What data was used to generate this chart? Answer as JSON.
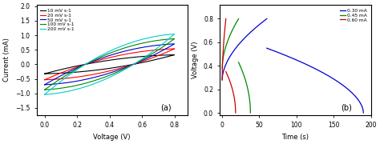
{
  "panel_a": {
    "title": "(a)",
    "xlabel": "Voltage (V)",
    "ylabel": "Current (mA)",
    "xlim": [
      -0.05,
      0.88
    ],
    "ylim": [
      -1.75,
      2.05
    ],
    "yticks": [
      -1.5,
      -1.0,
      -0.5,
      0.0,
      0.5,
      1.0,
      1.5,
      2.0
    ],
    "xticks": [
      0.0,
      0.2,
      0.4,
      0.6,
      0.8
    ],
    "curves": [
      {
        "label": "10 mV s-1",
        "color": "#000000",
        "amp": 0.5,
        "tilt": 0.65
      },
      {
        "label": "20 mV s-1",
        "color": "#ff0000",
        "amp": 0.82,
        "tilt": 0.65
      },
      {
        "label": "50 mV s-1",
        "color": "#0000cc",
        "amp": 1.08,
        "tilt": 0.65
      },
      {
        "label": "100 mV s-1",
        "color": "#008800",
        "amp": 1.35,
        "tilt": 0.65
      },
      {
        "label": "200 mV s-1",
        "color": "#00cccc",
        "amp": 1.6,
        "tilt": 0.65
      }
    ]
  },
  "panel_b": {
    "title": "(b)",
    "xlabel": "Time (s)",
    "ylabel": "Voltage (V)",
    "xlim": [
      -3,
      200
    ],
    "ylim": [
      -0.02,
      0.92
    ],
    "yticks": [
      0.0,
      0.2,
      0.4,
      0.6,
      0.8
    ],
    "xticks": [
      0,
      50,
      100,
      150,
      200
    ],
    "blue": {
      "label": "0.30 mA",
      "color": "#0000cc",
      "ch_t0": 0,
      "ch_t1": 60,
      "ch_v0": 0.28,
      "ch_v1": 0.8,
      "ch_exp": 0.55,
      "dc_t0": 60,
      "dc_t1": 190,
      "dc_v0": 0.55,
      "dc_v1": 0.0,
      "dc_exp": 0.55
    },
    "green": {
      "label": "0.45 mA",
      "color": "#008800",
      "ch_t0": 0,
      "ch_t1": 22,
      "ch_v0": 0.38,
      "ch_v1": 0.8,
      "ch_exp": 0.55,
      "dc_t0": 22,
      "dc_t1": 38,
      "dc_v0": 0.43,
      "dc_v1": 0.0,
      "dc_exp": 0.5
    },
    "red": {
      "label": "0.60 mA",
      "color": "#cc0000",
      "ch_t0": 0,
      "ch_t1": 5,
      "ch_v0": 0.28,
      "ch_v1": 0.8,
      "ch_exp": 0.55,
      "dc_t0": 5,
      "dc_t1": 18,
      "dc_v0": 0.35,
      "dc_v1": 0.0,
      "dc_exp": 0.5
    }
  }
}
